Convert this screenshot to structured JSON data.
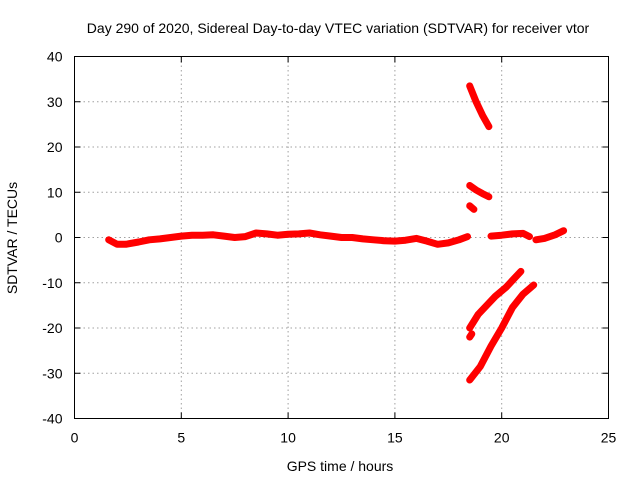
{
  "chart_data": {
    "type": "line",
    "title": "Day 290 of 2020, Sidereal Day-to-day VTEC variation (SDTVAR) for receiver vtor",
    "xlabel": "GPS time / hours",
    "ylabel": "SDTVAR / TECUs",
    "xlim": [
      0,
      25
    ],
    "ylim": [
      -40,
      40
    ],
    "xticks": [
      0,
      5,
      10,
      15,
      20,
      25
    ],
    "yticks": [
      -40,
      -30,
      -20,
      -10,
      0,
      10,
      20,
      30,
      40
    ],
    "xtick_labels": [
      "0",
      "5",
      "10",
      "15",
      "20",
      "25"
    ],
    "ytick_labels": [
      "-40",
      "-30",
      "-20",
      "-10",
      "0",
      "10",
      "20",
      "30",
      "40"
    ],
    "grid": true,
    "color": "#ff0000",
    "series": [
      {
        "x": [
          1.6,
          2.0,
          2.4,
          3.0,
          3.5,
          4.0,
          4.5,
          5.0,
          5.5,
          6.0,
          6.5,
          7.0,
          7.5,
          8.0,
          8.5,
          9.0,
          9.5,
          10.0,
          10.5,
          11.0,
          11.5,
          12.0,
          12.5,
          13.0,
          13.5,
          14.0,
          14.5,
          15.0,
          15.5,
          16.0,
          16.5,
          17.0,
          17.5,
          18.0,
          18.4
        ],
        "y": [
          -0.5,
          -1.5,
          -1.5,
          -1.0,
          -0.5,
          -0.3,
          0.0,
          0.3,
          0.5,
          0.5,
          0.6,
          0.3,
          0.0,
          0.2,
          1.0,
          0.8,
          0.5,
          0.7,
          0.8,
          1.0,
          0.6,
          0.3,
          0.0,
          0.0,
          -0.3,
          -0.5,
          -0.7,
          -0.8,
          -0.6,
          -0.2,
          -0.8,
          -1.5,
          -1.2,
          -0.5,
          0.2
        ]
      },
      {
        "x": [
          19.5,
          20.0,
          20.5,
          21.0,
          21.3
        ],
        "y": [
          0.3,
          0.5,
          0.8,
          0.9,
          0.2
        ]
      },
      {
        "x": [
          21.6,
          22.0,
          22.5,
          22.9
        ],
        "y": [
          -0.5,
          -0.2,
          0.6,
          1.5
        ]
      },
      {
        "x": [
          18.5,
          18.8,
          19.1,
          19.4
        ],
        "y": [
          33.5,
          30.0,
          27.0,
          24.5
        ]
      },
      {
        "x": [
          18.5,
          18.8,
          19.1,
          19.4
        ],
        "y": [
          11.5,
          10.5,
          9.7,
          9.0
        ]
      },
      {
        "x": [
          18.5,
          18.7
        ],
        "y": [
          7.0,
          6.2
        ]
      },
      {
        "x": [
          18.5,
          18.9,
          19.3,
          19.7,
          20.2,
          20.6,
          20.9
        ],
        "y": [
          -20.0,
          -17.0,
          -15.0,
          -13.0,
          -11.0,
          -9.0,
          -7.5
        ]
      },
      {
        "x": [
          18.5,
          18.6
        ],
        "y": [
          -22.0,
          -21.3
        ]
      },
      {
        "x": [
          18.5,
          19.0,
          19.5,
          20.0,
          20.5,
          21.0,
          21.5
        ],
        "y": [
          -31.5,
          -28.5,
          -24.0,
          -20.0,
          -15.5,
          -12.5,
          -10.5
        ]
      }
    ]
  }
}
